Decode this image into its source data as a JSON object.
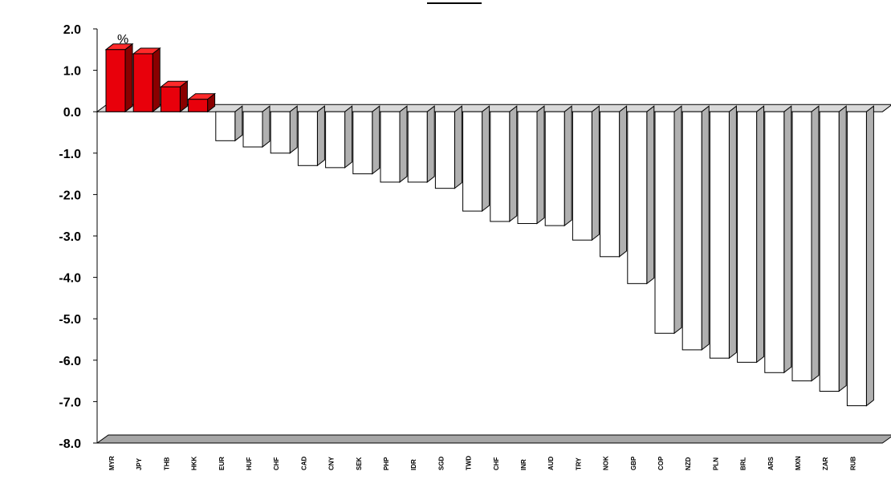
{
  "chart_data": {
    "type": "bar",
    "title": "",
    "xlabel": "",
    "ylabel": "",
    "unit_label": "%",
    "ylim": [
      -8,
      2
    ],
    "yticks": [
      "2.0",
      "1.0",
      "0.0",
      "-1.0",
      "-2.0",
      "-3.0",
      "-4.0",
      "-5.0",
      "-6.0",
      "-7.0",
      "-8.0"
    ],
    "grid": false,
    "legend": "none",
    "categories": [
      "MYR",
      "JPY",
      "THB",
      "HKK",
      "EUR",
      "HUF",
      "CHF",
      "CAD",
      "CNY",
      "SEK",
      "PHP",
      "IDR",
      "SGD",
      "TWD",
      "CHF",
      "INR",
      "AUD",
      "TRY",
      "NOK",
      "GBP",
      "COP",
      "NZD",
      "PLN",
      "BRL",
      "ARS",
      "MXN",
      "ZAR",
      "RUB"
    ],
    "values": [
      1.5,
      1.4,
      0.6,
      0.3,
      -0.7,
      -0.85,
      -1.0,
      -1.3,
      -1.35,
      -1.5,
      -1.7,
      -1.7,
      -1.85,
      -2.4,
      -2.65,
      -2.7,
      -2.75,
      -3.1,
      -3.5,
      -4.15,
      -5.35,
      -5.75,
      -5.95,
      -6.05,
      -6.3,
      -6.5,
      -6.75,
      -7.1
    ],
    "colors": {
      "positive": "#e8000b",
      "positive_top": "#ff2a2a",
      "positive_side": "#8a0000",
      "negative": "#ffffff",
      "negative_side": "#b0b0b0",
      "outline": "#000000",
      "floor": "#a6a6a6"
    }
  }
}
